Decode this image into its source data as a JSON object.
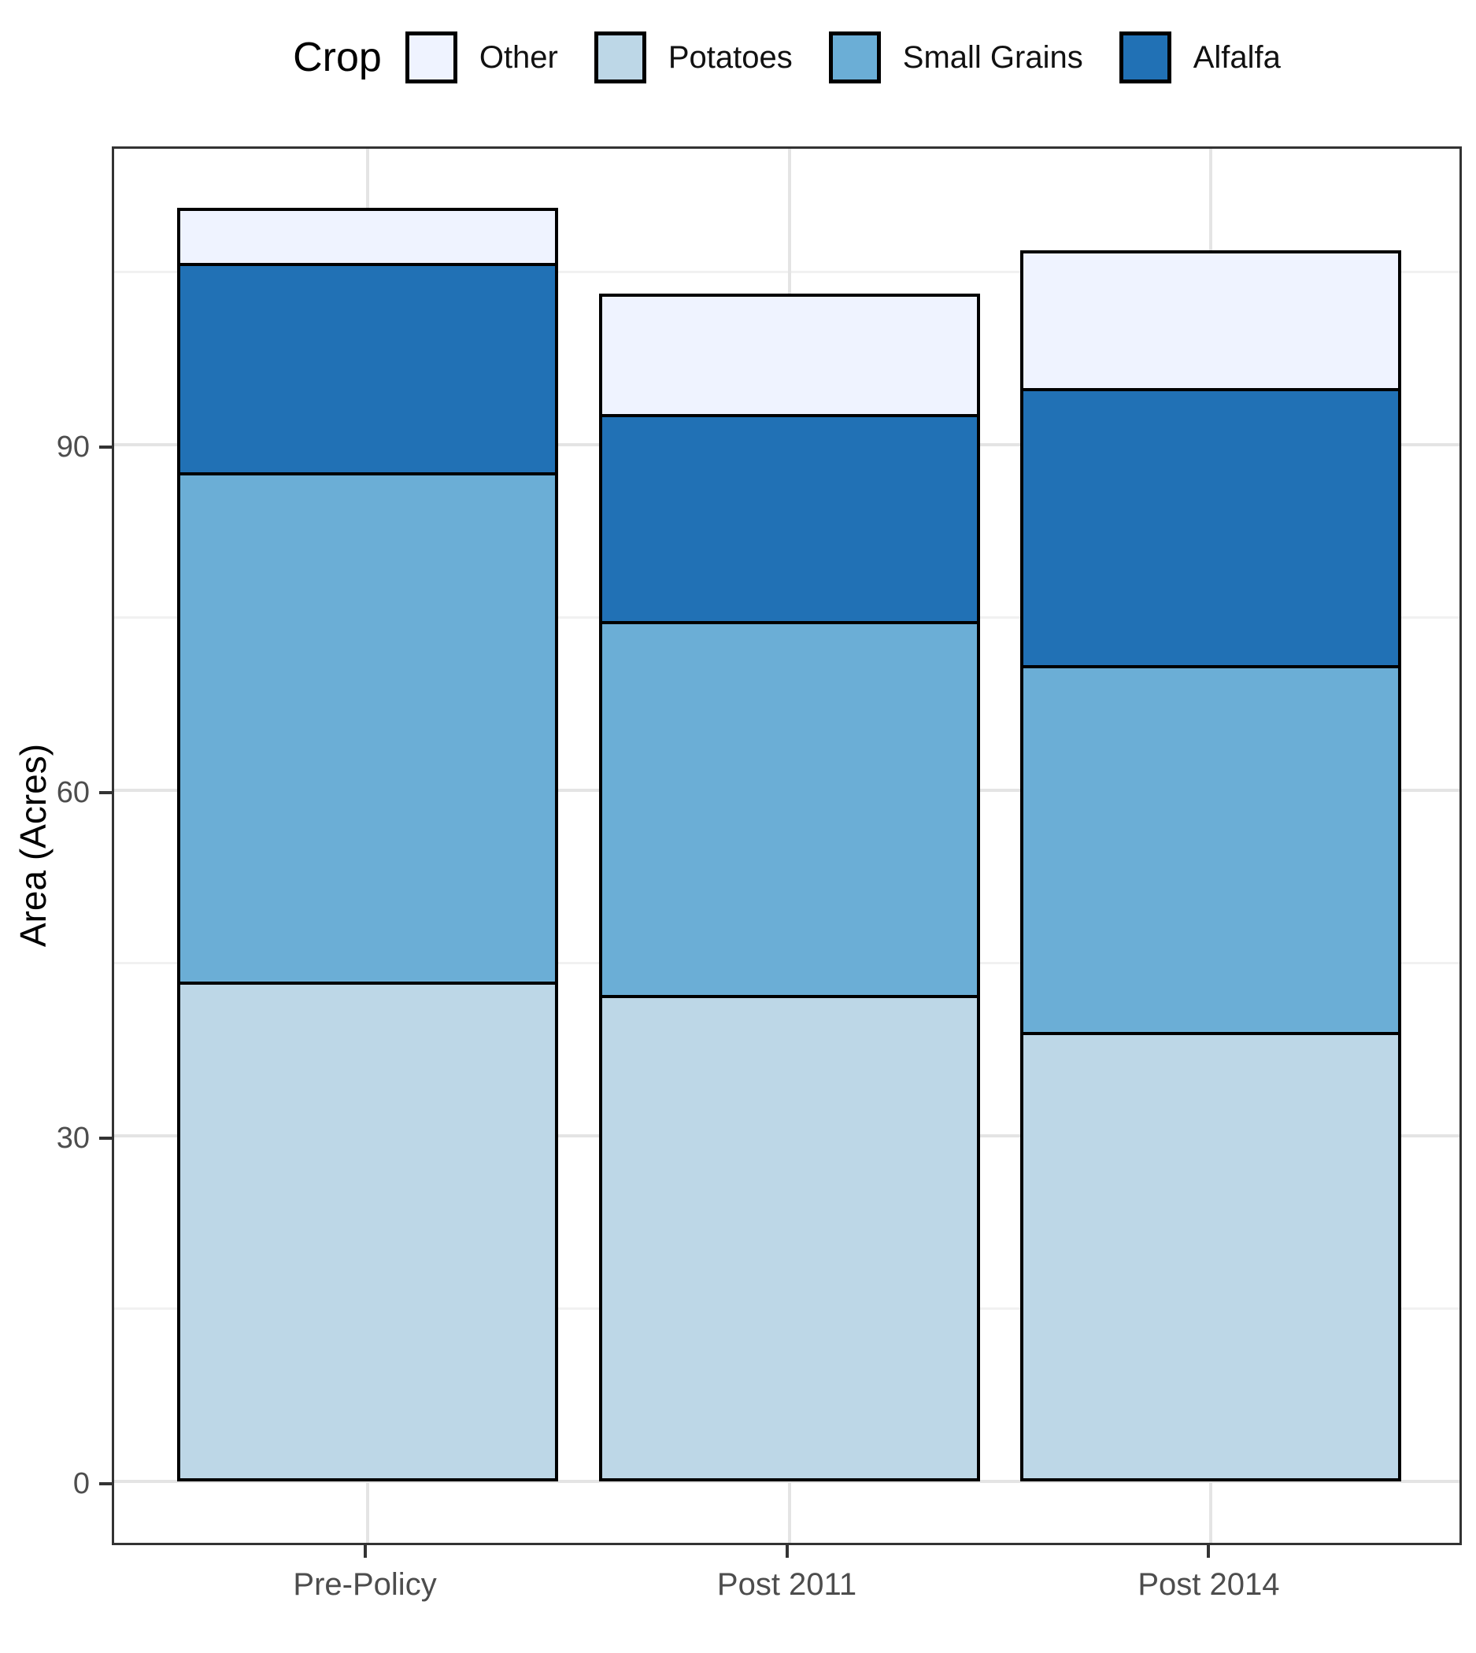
{
  "legend": {
    "title": "Crop",
    "position": "top",
    "entries": [
      {
        "label": "Other",
        "color": "#EFF3FF"
      },
      {
        "label": "Potatoes",
        "color": "#BDD7E7"
      },
      {
        "label": "Small Grains",
        "color": "#6BAED6"
      },
      {
        "label": "Alfalfa",
        "color": "#2171B5"
      }
    ]
  },
  "y_axis": {
    "title": "Area (Acres)",
    "ticks": [
      0,
      30,
      60,
      90
    ],
    "minor_ticks": [
      15,
      45,
      75,
      105
    ]
  },
  "x_axis": {
    "categories": [
      "Pre-Policy",
      "Post 2011",
      "Post 2014"
    ]
  },
  "chart_data": {
    "type": "bar",
    "stacked": true,
    "title": "",
    "xlabel": "",
    "ylabel": "Area (Acres)",
    "categories": [
      "Pre-Policy",
      "Post 2011",
      "Post 2014"
    ],
    "series": [
      {
        "name": "Potatoes",
        "color": "#BDD7E7",
        "values": [
          43.4,
          42.2,
          39.0
        ]
      },
      {
        "name": "Small Grains",
        "color": "#6BAED6",
        "values": [
          44.2,
          32.5,
          31.9
        ]
      },
      {
        "name": "Alfalfa",
        "color": "#2171B5",
        "values": [
          18.2,
          18.0,
          24.0
        ]
      },
      {
        "name": "Other",
        "color": "#EFF3FF",
        "values": [
          4.8,
          10.4,
          12.0
        ]
      }
    ],
    "stack_order_bottom_to_top": [
      "Potatoes",
      "Small Grains",
      "Alfalfa",
      "Other"
    ],
    "legend_order": [
      "Other",
      "Potatoes",
      "Small Grains",
      "Alfalfa"
    ],
    "yticks": [
      0,
      30,
      60,
      90
    ],
    "ylim": [
      -5.3,
      116.1
    ],
    "grid": "horizontal major+minor; vertical major at category centers",
    "legend_position": "top",
    "bar_outline_color": "#000000",
    "panel_border_color": "#333333"
  }
}
